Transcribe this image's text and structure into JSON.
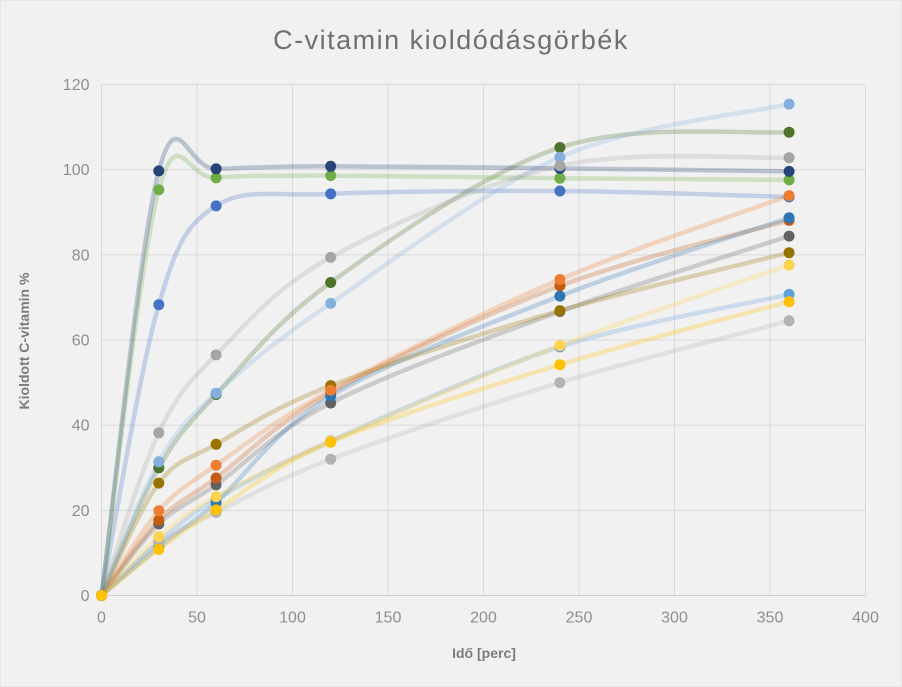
{
  "chart_data": {
    "type": "scatter",
    "subtype": "smooth-lines-with-markers",
    "title": "C-vitamin kioldódásgörbék",
    "xlabel": "Idő [perc]",
    "ylabel": "Kioldott C-vitamin %",
    "xlim": [
      0,
      400
    ],
    "ylim": [
      0,
      120
    ],
    "x_ticks": [
      0,
      50,
      100,
      150,
      200,
      250,
      300,
      350,
      400
    ],
    "y_ticks": [
      0,
      20,
      40,
      60,
      80,
      100,
      120
    ],
    "grid": true,
    "legend": "none",
    "x": [
      0,
      30,
      60,
      120,
      240,
      360
    ],
    "series": [
      {
        "name": "pale-blue",
        "color": "#5FA0DA",
        "values": [
          0,
          12.6,
          22.6,
          36.3,
          58.4,
          70.7
        ]
      },
      {
        "name": "dark-gray",
        "color": "#636363",
        "values": [
          0,
          16.8,
          26.0,
          45.2,
          66.7,
          84.4
        ]
      },
      {
        "name": "rust-orange",
        "color": "#C55A11",
        "values": [
          0,
          17.7,
          27.6,
          47.6,
          72.7,
          88.1
        ]
      },
      {
        "name": "steel-blue",
        "color": "#2E75B6",
        "values": [
          0,
          11.4,
          21.8,
          46.8,
          70.3,
          88.7
        ]
      },
      {
        "name": "silver-gray",
        "color": "#B3B3B3",
        "values": [
          0,
          12.2,
          19.5,
          32.0,
          50.0,
          64.5
        ]
      },
      {
        "name": "light-yellow",
        "color": "#FFD34D",
        "values": [
          0,
          13.8,
          23.2,
          36.2,
          58.7,
          77.6
        ]
      },
      {
        "name": "dark-gold",
        "color": "#997300",
        "values": [
          0,
          26.4,
          35.5,
          49.3,
          66.9,
          80.5
        ]
      },
      {
        "name": "royal-blue",
        "color": "#4472C4",
        "values": [
          0,
          68.3,
          91.5,
          94.3,
          95.0,
          93.6
        ]
      },
      {
        "name": "orange",
        "color": "#ED7D31",
        "values": [
          0,
          19.9,
          30.6,
          48.2,
          74.2,
          93.9
        ]
      },
      {
        "name": "dark-green",
        "color": "#4E732C",
        "values": [
          0,
          30.0,
          47.2,
          73.5,
          105.2,
          108.8
        ]
      },
      {
        "name": "light-blue",
        "color": "#85B0DE",
        "values": [
          0,
          31.4,
          47.5,
          68.6,
          102.9,
          115.4
        ]
      },
      {
        "name": "green",
        "color": "#70AD47",
        "values": [
          0,
          95.3,
          98.1,
          98.6,
          98.0,
          97.6
        ]
      },
      {
        "name": "navy-blue",
        "color": "#264478",
        "values": [
          0,
          99.7,
          100.2,
          100.8,
          100.3,
          99.6
        ]
      },
      {
        "name": "gray",
        "color": "#A5A5A5",
        "values": [
          0,
          38.2,
          56.5,
          79.4,
          100.9,
          102.8
        ]
      },
      {
        "name": "gold",
        "color": "#FFC000",
        "values": [
          0,
          10.8,
          20.1,
          36.0,
          54.2,
          69.0
        ]
      }
    ]
  },
  "style": {
    "background": "#f1f1f1",
    "grid_color": "#d9d9d9",
    "axis_line_color": "#cfcfcf",
    "tick_label_color": "#8e8e8e",
    "title_color": "#6f6f6f",
    "axis_title_color": "#7c7c7c",
    "line_opacity": 0.27,
    "line_width": 4.5,
    "marker_radius": 5.5
  }
}
